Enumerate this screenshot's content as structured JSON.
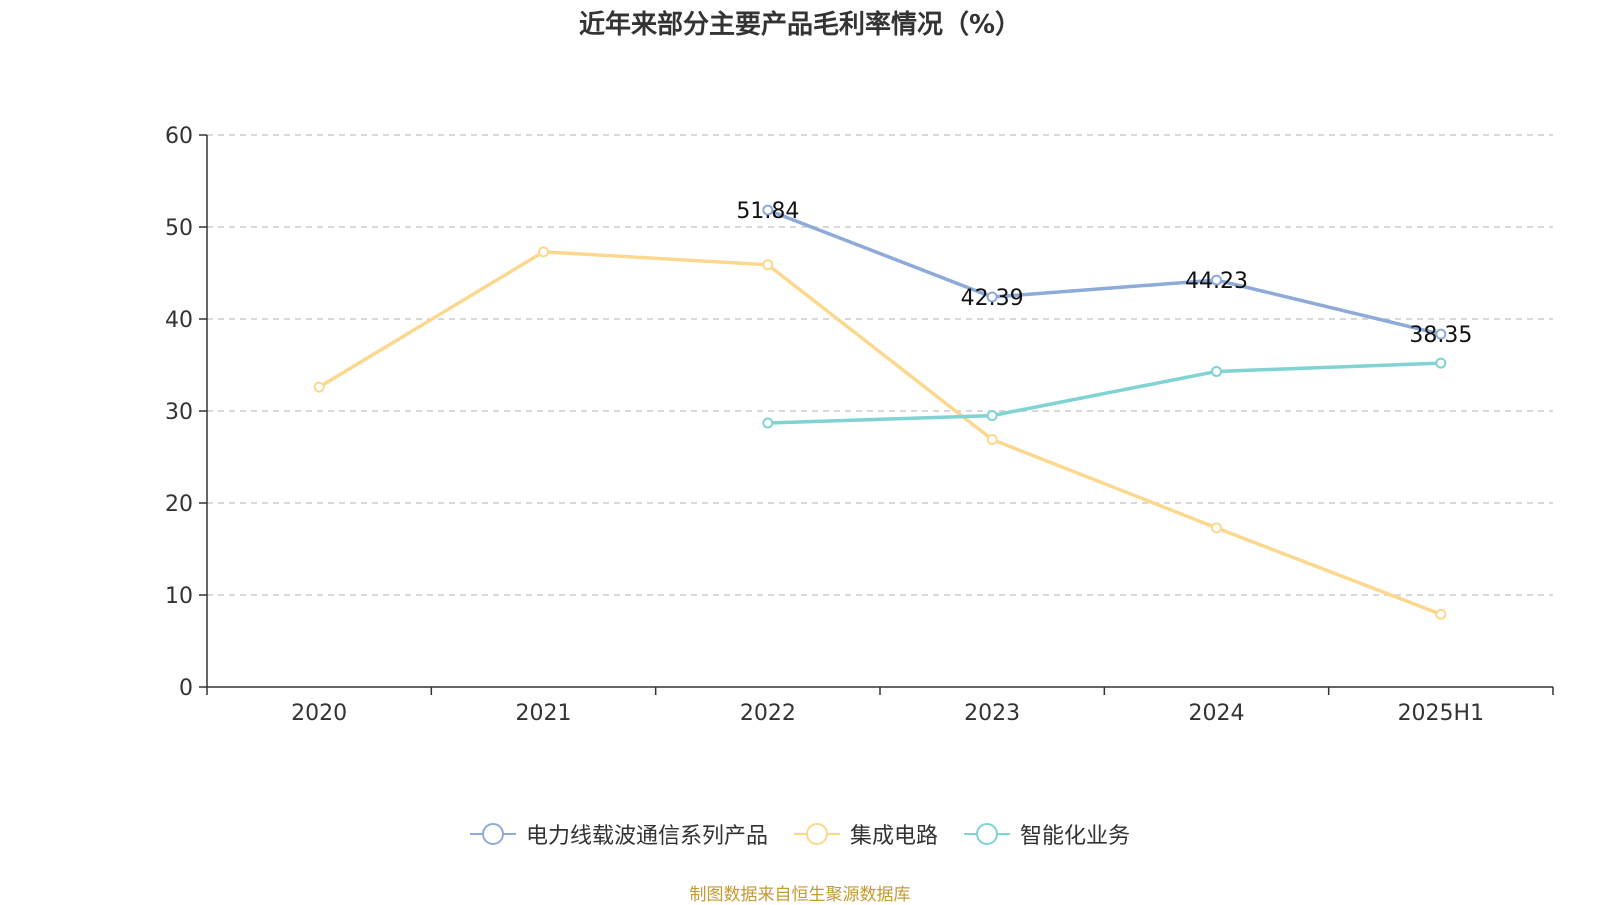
{
  "chart_data": {
    "type": "line",
    "title": "近年来部分主要产品毛利率情况（%）",
    "categories": [
      "2020",
      "2021",
      "2022",
      "2023",
      "2024",
      "2025H1"
    ],
    "ylim": [
      0,
      60
    ],
    "yticks": [
      "0",
      "10",
      "20",
      "30",
      "40",
      "50",
      "60"
    ],
    "grid": true,
    "legend_position": "bottom-center",
    "series": [
      {
        "name": "电力线载波通信系列产品",
        "color": "#8eaad8",
        "values": [
          null,
          null,
          51.84,
          42.39,
          44.23,
          38.35
        ],
        "labels": [
          null,
          null,
          "51.84",
          "42.39",
          "44.23",
          "38.35"
        ]
      },
      {
        "name": "集成电路",
        "color": "#fbd88e",
        "values": [
          32.6,
          47.3,
          45.9,
          26.9,
          17.3,
          7.9
        ],
        "labels": [
          null,
          null,
          null,
          null,
          null,
          null
        ]
      },
      {
        "name": "智能化业务",
        "color": "#7fd3d3",
        "values": [
          null,
          null,
          28.7,
          29.5,
          34.3,
          35.2
        ],
        "labels": [
          null,
          null,
          null,
          null,
          null,
          null
        ]
      }
    ]
  },
  "source": "制图数据来自恒生聚源数据库"
}
